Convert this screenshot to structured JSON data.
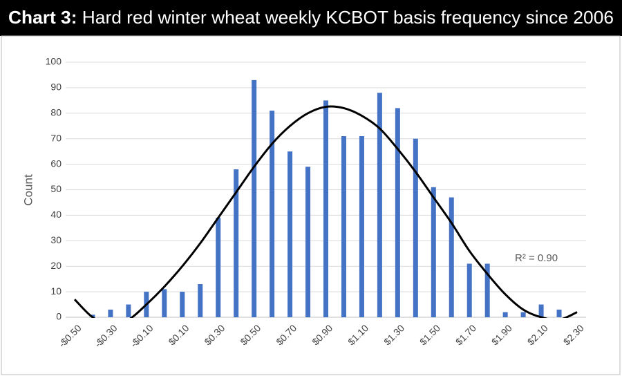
{
  "chart_data": {
    "type": "bar",
    "title_label": "Chart 3:",
    "title": "Hard red winter wheat weekly KCBOT basis frequency since 2006",
    "y_label": "Count",
    "annotation": "R² = 0.90",
    "categories": [
      "-$0.50",
      null,
      "-$0.30",
      null,
      "-$0.10",
      null,
      "$0.10",
      null,
      "$0.30",
      null,
      "$0.50",
      null,
      "$0.70",
      null,
      "$0.90",
      null,
      "$1.10",
      null,
      "$1.30",
      null,
      "$1.50",
      null,
      "$1.70",
      null,
      "$1.90",
      null,
      "$2.10",
      null,
      "$2.30"
    ],
    "values": [
      0,
      1,
      3,
      5,
      10,
      11,
      10,
      13,
      39,
      58,
      93,
      81,
      65,
      59,
      85,
      71,
      71,
      88,
      82,
      70,
      51,
      47,
      21,
      21,
      2,
      2,
      5,
      3,
      0
    ],
    "color": "#4472c4",
    "trendline": {
      "color": "#000000",
      "values": [
        7,
        0,
        -3,
        -1,
        5,
        12,
        20,
        29,
        39,
        49,
        59,
        68,
        75,
        80,
        82.5,
        82,
        79,
        74,
        66,
        57,
        47,
        37,
        26,
        17,
        9,
        3,
        0,
        -1,
        2
      ]
    },
    "ylim": [
      0,
      100
    ],
    "yticks": [
      0,
      10,
      20,
      30,
      40,
      50,
      60,
      70,
      80,
      90,
      100
    ],
    "grid": true
  }
}
